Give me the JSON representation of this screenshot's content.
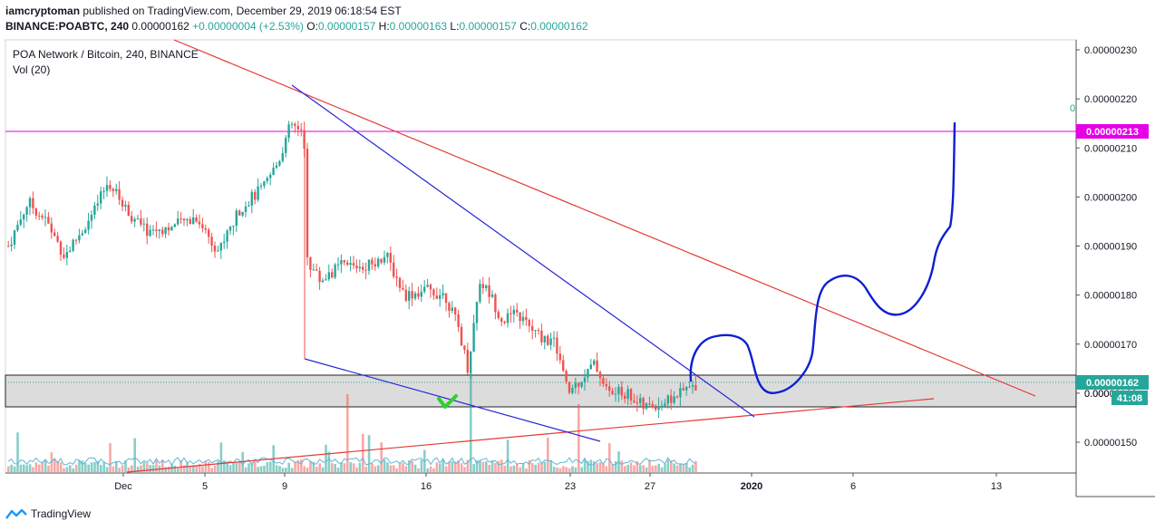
{
  "header": {
    "author": "iamcryptoman",
    "published_text": "published on TradingView.com, December 29, 2019 06:18:54 EST",
    "symbol": "BINANCE:POABTC,",
    "last": "240",
    "price": "0.00000162",
    "change": "+0.00000004 (+2.53%)",
    "o_label": "O:",
    "o_value": "0.00000157",
    "h_label": "H:",
    "h_value": "0.00000163",
    "l_label": "L:",
    "l_value": "0.00000157",
    "c_label": "C:",
    "c_value": "0.00000162"
  },
  "legend": {
    "pane_title": "POA Network / Bitcoin, 240, BINANCE",
    "volume_label": "Vol (20)"
  },
  "footer": {
    "brand": "TradingView"
  },
  "colors": {
    "up": "#26a69a",
    "down": "#ef5350",
    "magenta": "#e600e6",
    "red_line": "#e53935",
    "blue_line": "#2626d9",
    "drawing": "#0d1fd1"
  },
  "chart_data": {
    "type": "candlestick",
    "y_axis_ticks": [
      "0.00000230",
      "0.00000220",
      "0.00000210",
      "0.00000200",
      "0.00000190",
      "0.00000180",
      "0.00000170",
      "0.00000160",
      "0.00000150"
    ],
    "x_axis_ticks": [
      "Dec",
      "5",
      "9",
      "16",
      "23",
      "27",
      "2020",
      "6",
      "13"
    ],
    "ylim": [
      1.43e-06,
      2.32e-06
    ],
    "horizontal_line": {
      "value": 2.13e-06,
      "label": "0.00000213"
    },
    "last_price_label": "0.00000162",
    "countdown_label": "41:08",
    "support_zone": [
      1.56e-06,
      1.63e-06
    ],
    "zone_label": "0.000",
    "small_right_label": "0"
  }
}
